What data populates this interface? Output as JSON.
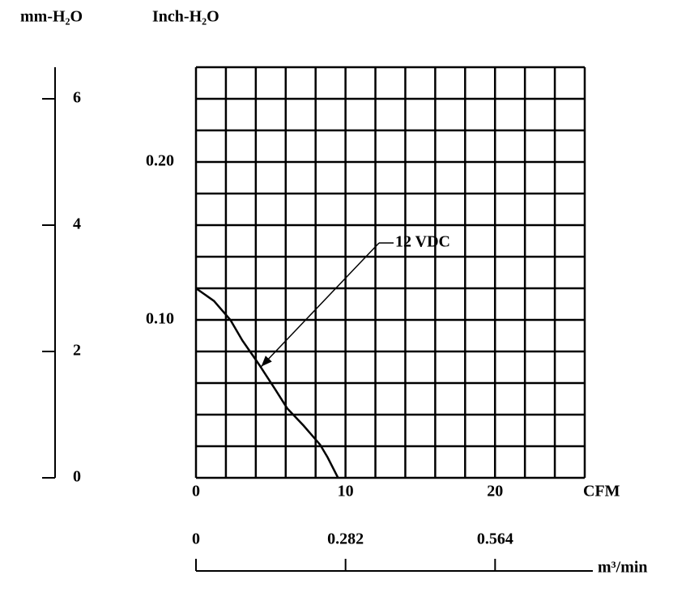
{
  "chart_data": {
    "type": "line",
    "x_label": "CFM",
    "y_label": "Inch-H₂O",
    "x": [
      0,
      1.2,
      2.3,
      3.1,
      4.2,
      5.3,
      6.1,
      7.2,
      8.3,
      8.8,
      9.5
    ],
    "series": [
      {
        "name": "12 VDC",
        "color": "#000000",
        "values": [
          0.12,
          0.112,
          0.1,
          0.087,
          0.072,
          0.056,
          0.044,
          0.033,
          0.021,
          0.013,
          0
        ]
      }
    ],
    "xlim": [
      0,
      26
    ],
    "ylim": [
      0,
      0.26
    ],
    "xticks": [
      0,
      10,
      20
    ],
    "yticks": [
      {
        "value": 0.1,
        "label": "0.10"
      },
      {
        "value": 0.2,
        "label": "0.20"
      }
    ],
    "xgrid": [
      0,
      2,
      4,
      6,
      8,
      10,
      12,
      14,
      16,
      18,
      20,
      22,
      24,
      26
    ],
    "ygrid": [
      0,
      0.02,
      0.04,
      0.06,
      0.08,
      0.1,
      0.12,
      0.14,
      0.16,
      0.18,
      0.2,
      0.22,
      0.24,
      0.26
    ],
    "mm_axis": {
      "label": "mm-H₂O",
      "lim": [
        0,
        6.5
      ],
      "ticks": [
        0,
        2,
        4,
        6
      ]
    },
    "m3_axis": {
      "label": "m³/min",
      "lim": [
        0,
        0.733
      ],
      "ticks": [
        0,
        0.282,
        0.564
      ]
    }
  }
}
